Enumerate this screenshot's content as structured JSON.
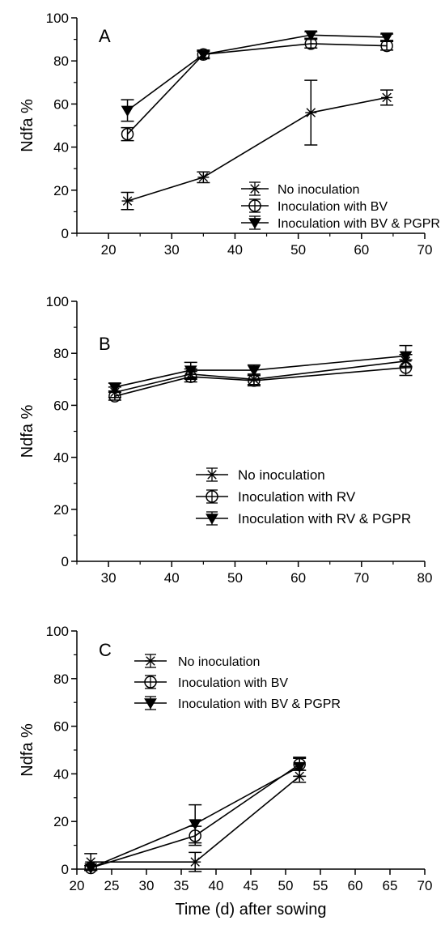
{
  "chart_data": [
    {
      "type": "line",
      "panel_label": "A",
      "xlabel": "",
      "ylabel": "Ndfa %",
      "xlim": [
        15,
        70
      ],
      "ylim": [
        0,
        100
      ],
      "x_ticks": [
        "20",
        "30",
        "40",
        "50",
        "60",
        "70"
      ],
      "y_ticks": [
        "0",
        "20",
        "40",
        "60",
        "80",
        "100"
      ],
      "legend_position": "lower-right",
      "series": [
        {
          "name": "No inoculation",
          "marker": "asterisk",
          "x": [
            23,
            35,
            52,
            64
          ],
          "y": [
            15,
            26,
            56,
            63
          ],
          "err": [
            4,
            2.5,
            15,
            3.5
          ]
        },
        {
          "name": "Inoculation with BV",
          "marker": "circle",
          "x": [
            23,
            35,
            52,
            64
          ],
          "y": [
            46,
            83,
            88,
            87
          ],
          "err": [
            3,
            1.5,
            2,
            2
          ]
        },
        {
          "name": "Inoculation with BV & PGPR",
          "marker": "triangle-down",
          "x": [
            23,
            35,
            52,
            64
          ],
          "y": [
            57,
            83,
            92,
            91
          ],
          "err": [
            5,
            2,
            1.5,
            1.5
          ]
        }
      ]
    },
    {
      "type": "line",
      "panel_label": "B",
      "xlabel": "",
      "ylabel": "Ndfa %",
      "xlim": [
        25,
        80
      ],
      "ylim": [
        0,
        100
      ],
      "x_ticks": [
        "30",
        "40",
        "50",
        "60",
        "70",
        "80"
      ],
      "y_ticks": [
        "0",
        "20",
        "40",
        "60",
        "80",
        "100"
      ],
      "legend_position": "lower-center",
      "series": [
        {
          "name": "No inoculation",
          "marker": "asterisk",
          "x": [
            31,
            43,
            53,
            77
          ],
          "y": [
            65,
            72,
            70,
            77
          ],
          "err": [
            2,
            2,
            2,
            2.5
          ]
        },
        {
          "name": "Inoculation with RV",
          "marker": "circle",
          "x": [
            31,
            43,
            53,
            77
          ],
          "y": [
            63.5,
            71,
            69.5,
            74.5
          ],
          "err": [
            1.5,
            2,
            2,
            3
          ]
        },
        {
          "name": "Inoculation with RV & PGPR",
          "marker": "triangle-down",
          "x": [
            31,
            43,
            53,
            77
          ],
          "y": [
            67,
            73.5,
            73.5,
            79
          ],
          "err": [
            1.5,
            3,
            2,
            4
          ]
        }
      ]
    },
    {
      "type": "line",
      "panel_label": "C",
      "xlabel": "Time (d) after sowing",
      "ylabel": "Ndfa %",
      "xlim": [
        20,
        70
      ],
      "ylim": [
        0,
        100
      ],
      "x_ticks": [
        "20",
        "25",
        "30",
        "35",
        "40",
        "45",
        "50",
        "55",
        "60",
        "65",
        "70"
      ],
      "y_ticks": [
        "0",
        "20",
        "40",
        "60",
        "80",
        "100"
      ],
      "legend_position": "top-left",
      "series": [
        {
          "name": "No inoculation",
          "marker": "asterisk",
          "x": [
            22,
            37,
            52
          ],
          "y": [
            3,
            3,
            39
          ],
          "err": [
            3.5,
            4,
            2.5
          ]
        },
        {
          "name": "Inoculation with BV",
          "marker": "circle",
          "x": [
            22,
            37,
            52
          ],
          "y": [
            0.5,
            14,
            44
          ],
          "err": [
            1,
            4,
            2.5
          ]
        },
        {
          "name": "Inoculation with BV & PGPR",
          "marker": "triangle-down",
          "x": [
            22,
            37,
            52
          ],
          "y": [
            0.5,
            19,
            43
          ],
          "err": [
            1,
            8,
            4
          ]
        }
      ]
    }
  ]
}
